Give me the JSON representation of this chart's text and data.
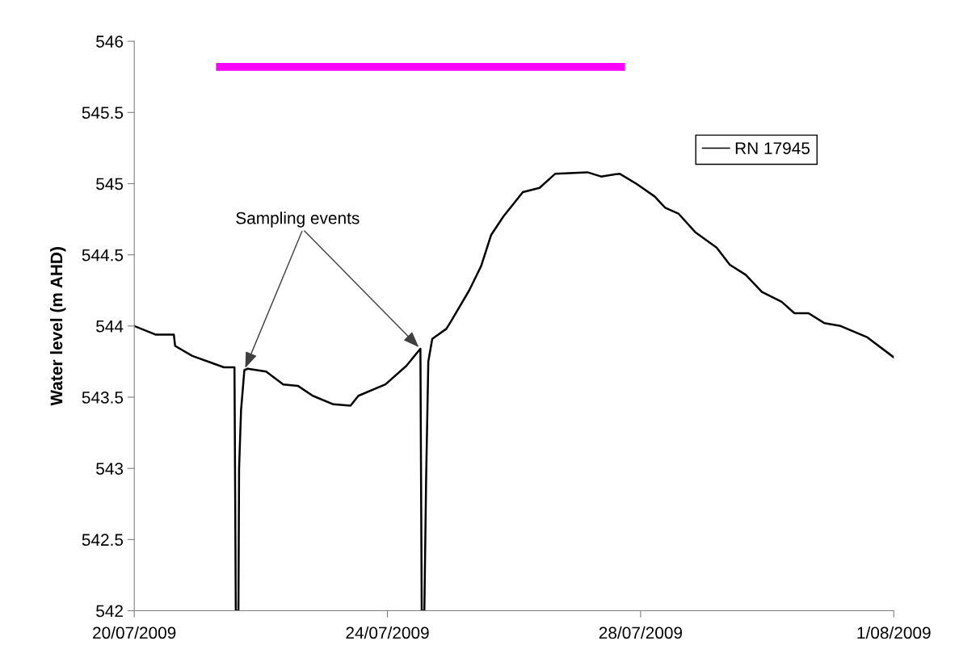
{
  "chart_data": {
    "type": "line",
    "ylabel": "Water level (m AHD)",
    "xlim": [
      "2009-07-20",
      "2009-08-01"
    ],
    "xticks": [
      {
        "value": "2009-07-20",
        "label": "20/07/2009"
      },
      {
        "value": "2009-07-24",
        "label": "24/07/2009"
      },
      {
        "value": "2009-07-28",
        "label": "28/07/2009"
      },
      {
        "value": "2009-08-01",
        "label": "1/08/2009"
      }
    ],
    "ylim": [
      542,
      546
    ],
    "yticks": [
      542,
      542.5,
      543,
      543.5,
      544,
      544.5,
      545,
      545.5,
      546
    ],
    "grid": false,
    "legend": "top right",
    "marker": "none",
    "line_style": "solid",
    "annotations": [
      {
        "text": "Sampling events",
        "x": "2009-07-21T17:45",
        "y": 543.69
      }
    ],
    "series": [
      {
        "name": "RN 17945",
        "color": "#000000",
        "x": [
          "2009-07-20T00:00",
          "2009-07-20T08:00",
          "2009-07-20T15:00",
          "2009-07-20T15:30",
          "2009-07-20T22:00",
          "2009-07-21T10:00",
          "2009-07-21T14:00",
          "2009-07-21T14:30",
          "2009-07-21T15:30",
          "2009-07-21T15:45",
          "2009-07-21T16:30",
          "2009-07-21T17:45",
          "2009-07-21T19:00",
          "2009-07-22T02:00",
          "2009-07-22T08:30",
          "2009-07-22T14:00",
          "2009-07-22T19:40",
          "2009-07-23T03:30",
          "2009-07-23T10:00",
          "2009-07-23T13:00",
          "2009-07-23T23:15",
          "2009-07-24T07:10",
          "2009-07-24T12:30",
          "2009-07-24T13:00",
          "2009-07-24T14:00",
          "2009-07-24T14:40",
          "2009-07-24T15:30",
          "2009-07-24T17:00",
          "2009-07-24T22:20",
          "2009-07-25T00:00",
          "2009-07-25T07:00",
          "2009-07-25T11:30",
          "2009-07-25T15:20",
          "2009-07-25T20:00",
          "2009-07-26T03:20",
          "2009-07-26T09:40",
          "2009-07-26T15:40",
          "2009-07-27T03:50",
          "2009-07-27T09:00",
          "2009-07-27T16:00",
          "2009-07-27T22:20",
          "2009-07-28T05:20",
          "2009-07-28T09:20",
          "2009-07-28T14:20",
          "2009-07-28T20:40",
          "2009-07-29T04:50",
          "2009-07-29T09:50",
          "2009-07-29T15:50",
          "2009-07-29T22:00",
          "2009-07-30T05:30",
          "2009-07-30T10:20",
          "2009-07-30T15:40",
          "2009-07-30T21:40",
          "2009-07-31T03:50",
          "2009-07-31T14:00",
          "2009-08-01T00:00"
        ],
        "values": [
          544.0,
          543.94,
          543.94,
          543.86,
          543.79,
          543.71,
          543.71,
          542,
          542,
          543.0,
          543.41,
          543.69,
          543.7,
          543.68,
          543.59,
          543.58,
          543.51,
          543.45,
          543.44,
          543.51,
          543.59,
          543.72,
          543.84,
          542,
          542,
          542.92,
          543.75,
          543.91,
          543.98,
          544.03,
          544.25,
          544.42,
          544.64,
          544.77,
          544.94,
          544.97,
          545.07,
          545.08,
          545.05,
          545.07,
          545.0,
          544.91,
          544.83,
          544.79,
          544.66,
          544.55,
          544.43,
          544.36,
          544.24,
          544.17,
          544.09,
          544.09,
          544.02,
          544.0,
          543.92,
          543.78
        ]
      },
      {
        "type": "line",
        "color": "#ff00ff",
        "x": [
          "2009-07-21T07:00",
          "2009-07-27T18:00"
        ],
        "values": [
          545.82,
          545.82
        ]
      }
    ]
  }
}
